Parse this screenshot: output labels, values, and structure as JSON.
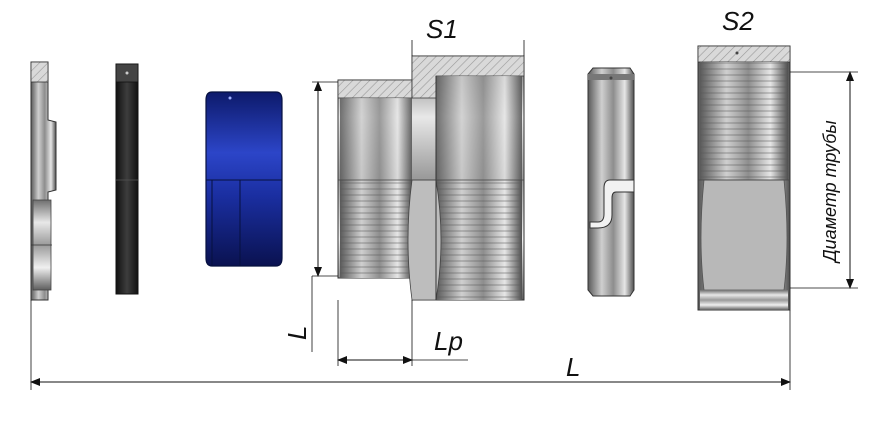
{
  "labels": {
    "s1": "S1",
    "s2": "S2",
    "l_vertical": "L",
    "lp": "Lp",
    "l_total": "L",
    "pipe_diameter": "Диаметр трубы"
  },
  "colors": {
    "steel_dark": "#3a3a3a",
    "steel_mid": "#8a8a8a",
    "steel_light": "#d6d6d6",
    "seal_blue": "#1b2f9e",
    "seal_dark": "#0b154f",
    "black_ring": "#222222",
    "hatch": "#b5b5b5"
  }
}
